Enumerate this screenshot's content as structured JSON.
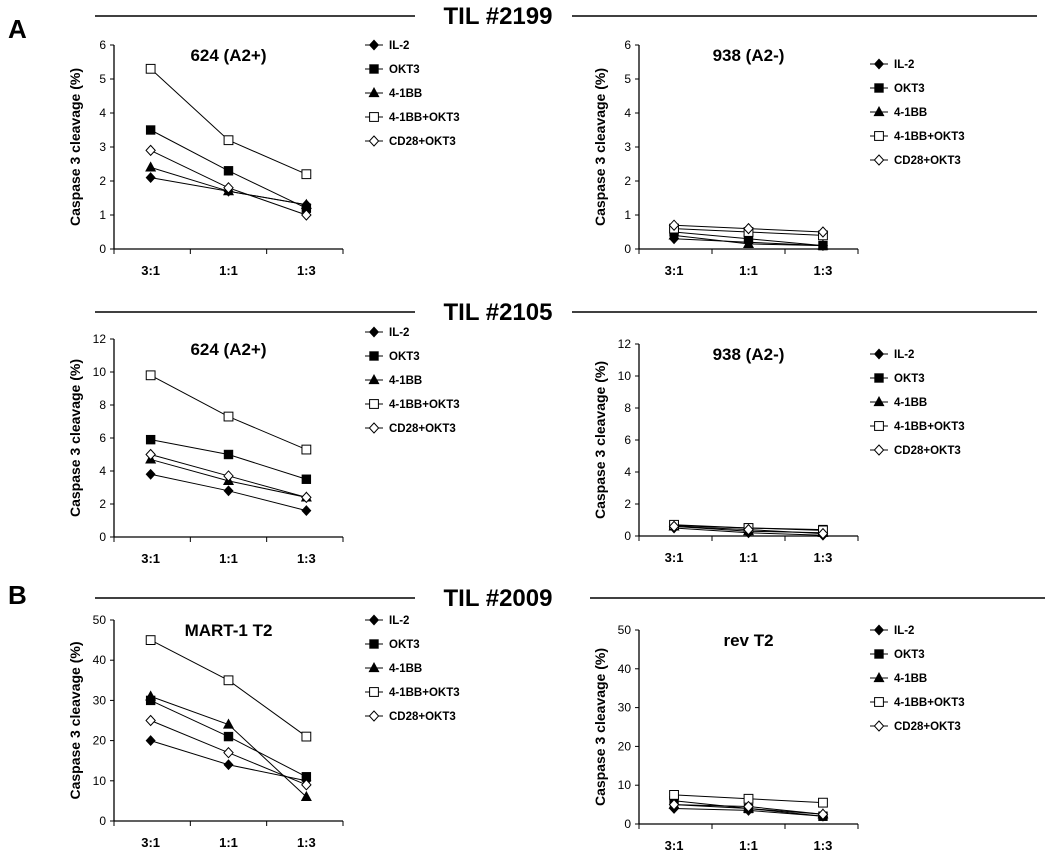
{
  "panel_labels": [
    "A",
    "B"
  ],
  "sections": [
    {
      "title": "TIL #2199"
    },
    {
      "title": "TIL #2105"
    },
    {
      "title": "TIL #2009"
    }
  ],
  "legend_entries": [
    "IL-2",
    "OKT3",
    "4-1BB",
    "4-1BB+OKT3",
    "CD28+OKT3"
  ],
  "marker_shapes": [
    "filled-diamond",
    "filled-square",
    "filled-triangle",
    "open-square",
    "open-diamond"
  ],
  "chart_data": [
    {
      "type": "line",
      "section": "TIL #2199",
      "title": "624 (A2+)",
      "ylabel": "Caspase 3 cleavage (%)",
      "categories": [
        "3:1",
        "1:1",
        "1:3"
      ],
      "ylim": [
        0,
        6
      ],
      "yticks": [
        0,
        1,
        2,
        3,
        4,
        5,
        6
      ],
      "legend_position": "right",
      "grid": false,
      "series": [
        {
          "name": "IL-2",
          "values": [
            2.1,
            1.7,
            1.3
          ]
        },
        {
          "name": "OKT3",
          "values": [
            3.5,
            2.3,
            1.2
          ]
        },
        {
          "name": "4-1BB",
          "values": [
            2.4,
            1.7,
            1.3
          ]
        },
        {
          "name": "4-1BB+OKT3",
          "values": [
            5.3,
            3.2,
            2.2
          ]
        },
        {
          "name": "CD28+OKT3",
          "values": [
            2.9,
            1.8,
            1.0
          ]
        }
      ]
    },
    {
      "type": "line",
      "section": "TIL #2199",
      "title": "938 (A2-)",
      "ylabel": "Caspase 3 cleavage (%)",
      "categories": [
        "3:1",
        "1:1",
        "1:3"
      ],
      "ylim": [
        0,
        6
      ],
      "yticks": [
        0,
        1,
        2,
        3,
        4,
        5,
        6
      ],
      "legend_position": "right",
      "grid": false,
      "series": [
        {
          "name": "IL-2",
          "values": [
            0.3,
            0.2,
            0.1
          ]
        },
        {
          "name": "OKT3",
          "values": [
            0.5,
            0.3,
            0.1
          ]
        },
        {
          "name": "4-1BB",
          "values": [
            0.4,
            0.15,
            0.1
          ]
        },
        {
          "name": "4-1BB+OKT3",
          "values": [
            0.6,
            0.5,
            0.4
          ]
        },
        {
          "name": "CD28+OKT3",
          "values": [
            0.7,
            0.6,
            0.5
          ]
        }
      ]
    },
    {
      "type": "line",
      "section": "TIL #2105",
      "title": "624 (A2+)",
      "ylabel": "Caspase 3 cleavage (%)",
      "categories": [
        "3:1",
        "1:1",
        "1:3"
      ],
      "ylim": [
        0,
        12
      ],
      "yticks": [
        0,
        2,
        4,
        6,
        8,
        10,
        12
      ],
      "legend_position": "right",
      "grid": false,
      "series": [
        {
          "name": "IL-2",
          "values": [
            3.8,
            2.8,
            1.6
          ]
        },
        {
          "name": "OKT3",
          "values": [
            5.9,
            5.0,
            3.5
          ]
        },
        {
          "name": "4-1BB",
          "values": [
            4.7,
            3.4,
            2.4
          ]
        },
        {
          "name": "4-1BB+OKT3",
          "values": [
            9.8,
            7.3,
            5.3
          ]
        },
        {
          "name": "CD28+OKT3",
          "values": [
            5.0,
            3.7,
            2.4
          ]
        }
      ]
    },
    {
      "type": "line",
      "section": "TIL #2105",
      "title": "938 (A2-)",
      "ylabel": "Caspase 3 cleavage (%)",
      "categories": [
        "3:1",
        "1:1",
        "1:3"
      ],
      "ylim": [
        0,
        12
      ],
      "yticks": [
        0,
        2,
        4,
        6,
        8,
        10,
        12
      ],
      "legend_position": "right",
      "grid": false,
      "series": [
        {
          "name": "IL-2",
          "values": [
            0.5,
            0.2,
            0.05
          ]
        },
        {
          "name": "OKT3",
          "values": [
            0.65,
            0.5,
            0.4
          ]
        },
        {
          "name": "4-1BB",
          "values": [
            0.6,
            0.3,
            0.2
          ]
        },
        {
          "name": "4-1BB+OKT3",
          "values": [
            0.7,
            0.5,
            0.35
          ]
        },
        {
          "name": "CD28+OKT3",
          "values": [
            0.6,
            0.4,
            0.15
          ]
        }
      ]
    },
    {
      "type": "line",
      "section": "TIL #2009",
      "title": "MART-1 T2",
      "ylabel": "Caspase 3 cleavage (%)",
      "categories": [
        "3:1",
        "1:1",
        "1:3"
      ],
      "ylim": [
        0,
        50
      ],
      "yticks": [
        0,
        10,
        20,
        30,
        40,
        50
      ],
      "legend_position": "right",
      "grid": false,
      "series": [
        {
          "name": "IL-2",
          "values": [
            20,
            14,
            10
          ]
        },
        {
          "name": "OKT3",
          "values": [
            30,
            21,
            11
          ]
        },
        {
          "name": "4-1BB",
          "values": [
            31,
            24,
            6
          ]
        },
        {
          "name": "4-1BB+OKT3",
          "values": [
            45,
            35,
            21
          ]
        },
        {
          "name": "CD28+OKT3",
          "values": [
            25,
            17,
            9
          ]
        }
      ]
    },
    {
      "type": "line",
      "section": "TIL #2009",
      "title": "rev T2",
      "ylabel": "Caspase 3 cleavage (%)",
      "categories": [
        "3:1",
        "1:1",
        "1:3"
      ],
      "ylim": [
        0,
        50
      ],
      "yticks": [
        0,
        10,
        20,
        30,
        40,
        50
      ],
      "legend_position": "right",
      "grid": false,
      "series": [
        {
          "name": "IL-2",
          "values": [
            4,
            3.5,
            2
          ]
        },
        {
          "name": "OKT3",
          "values": [
            6,
            4,
            2
          ]
        },
        {
          "name": "4-1BB",
          "values": [
            5,
            4,
            2.5
          ]
        },
        {
          "name": "4-1BB+OKT3",
          "values": [
            7.5,
            6.5,
            5.5
          ]
        },
        {
          "name": "CD28+OKT3",
          "values": [
            5,
            4.5,
            2.5
          ]
        }
      ]
    }
  ]
}
